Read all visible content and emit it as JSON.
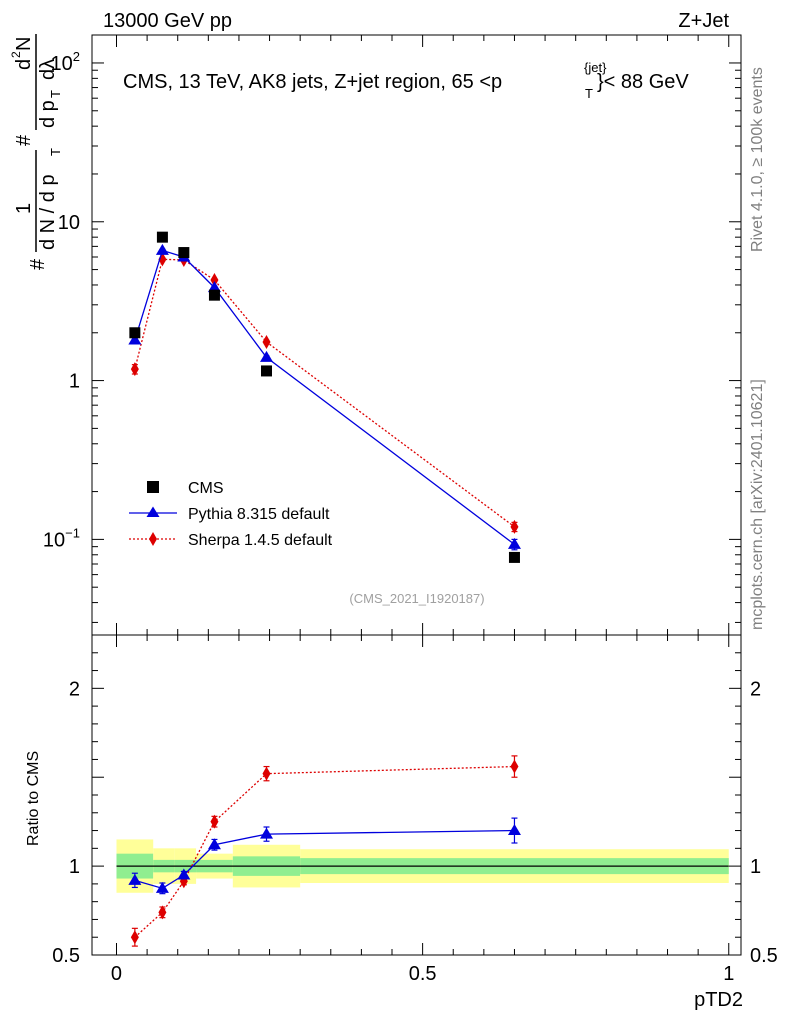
{
  "header": {
    "left": "13000 GeV pp",
    "right": "Z+Jet"
  },
  "side": {
    "rivet": "Rivet 4.1.0, ≥ 100k events",
    "mcplots": "mcplots.cern.ch [arXiv:2401.10621]"
  },
  "chart_data": [
    {
      "type": "line",
      "title": "CMS, 13 TeV, AK8 jets, Z+jet region, 65 < p_T^{jet} < 88 GeV",
      "title_parts": {
        "prefix": "CMS, 13 TeV, AK8 jets, Z+jet region, 65 <p",
        "sup": "{jet}",
        "sub": "T",
        "suffix": "}< 88 GeV"
      },
      "watermark": "(CMS_2021_I1920187)",
      "ylabel_parts": {
        "hash": "#",
        "one": "1",
        "den": "d N / d p",
        "sub_T": "T",
        "num": "d",
        "num_sup": "2",
        "num_N": "N",
        "dpt": "d p",
        "dl": "dλ"
      },
      "yscale": "log",
      "ylim": [
        0.025,
        150
      ],
      "y_ticks": [
        0.1,
        1,
        10,
        100
      ],
      "y_tick_labels": [
        {
          "base": "10",
          "exp": "−1"
        },
        {
          "base": "1",
          "exp": ""
        },
        {
          "base": "10",
          "exp": ""
        },
        {
          "base": "10",
          "exp": "2"
        }
      ],
      "xlim": [
        -0.04,
        1.02
      ],
      "legend": {
        "position": "bottom-left",
        "entries": [
          "CMS",
          "Pythia 8.315 default",
          "Sherpa 1.4.5 default"
        ]
      },
      "series": [
        {
          "name": "CMS",
          "color": "#000000",
          "marker": "square",
          "x": [
            0.03,
            0.075,
            0.11,
            0.16,
            0.245,
            0.65
          ],
          "y": [
            2.0,
            8.0,
            6.4,
            3.45,
            1.15,
            0.077
          ]
        },
        {
          "name": "Pythia 8.315 default",
          "color": "#0000dd",
          "marker": "triangle",
          "line": "solid",
          "x": [
            0.03,
            0.075,
            0.11,
            0.16,
            0.245,
            0.65
          ],
          "y": [
            1.8,
            6.6,
            6.0,
            3.85,
            1.4,
            0.093
          ],
          "yerr": [
            0.06,
            0.1,
            0.1,
            0.07,
            0.03,
            0.007
          ]
        },
        {
          "name": "Sherpa 1.4.5 default",
          "color": "#dd0000",
          "marker": "diamond",
          "line": "dotted",
          "x": [
            0.03,
            0.075,
            0.11,
            0.16,
            0.245,
            0.65
          ],
          "y": [
            1.18,
            5.8,
            5.75,
            4.3,
            1.75,
            0.12
          ],
          "yerr": [
            0.08,
            0.12,
            0.1,
            0.08,
            0.04,
            0.008
          ]
        }
      ]
    },
    {
      "type": "line",
      "ylabel": "Ratio to CMS",
      "xlabel": "pTD2",
      "xlim": [
        -0.04,
        1.02
      ],
      "ylim": [
        0.5,
        2.3
      ],
      "x_ticks": [
        0,
        0.5,
        1
      ],
      "x_tick_labels": [
        "0",
        "0.5",
        "1"
      ],
      "y_ticks": [
        0.5,
        1,
        2
      ],
      "y_tick_labels": [
        "0.5",
        "1",
        "2"
      ],
      "bands": {
        "bin_edges": [
          0,
          0.06,
          0.095,
          0.13,
          0.19,
          0.3,
          1.0
        ],
        "stat_lo": [
          0.93,
          0.965,
          0.965,
          0.965,
          0.945,
          0.955
        ],
        "stat_hi": [
          1.07,
          1.035,
          1.035,
          1.035,
          1.055,
          1.045
        ],
        "total_lo": [
          0.85,
          0.9,
          0.9,
          0.93,
          0.88,
          0.905
        ],
        "total_hi": [
          1.15,
          1.1,
          1.1,
          1.07,
          1.12,
          1.095
        ],
        "stat_color": "#90ee90",
        "total_color": "#ffff99"
      },
      "series": [
        {
          "name": "Pythia 8.315 default",
          "color": "#0000dd",
          "marker": "triangle",
          "line": "solid",
          "x": [
            0.03,
            0.075,
            0.11,
            0.16,
            0.245,
            0.65
          ],
          "y": [
            0.92,
            0.875,
            0.95,
            1.12,
            1.18,
            1.2
          ],
          "yerr": [
            0.04,
            0.03,
            0.02,
            0.03,
            0.04,
            0.07
          ]
        },
        {
          "name": "Sherpa 1.4.5 default",
          "color": "#dd0000",
          "marker": "diamond",
          "line": "dotted",
          "x": [
            0.03,
            0.075,
            0.11,
            0.16,
            0.245,
            0.65
          ],
          "y": [
            0.6,
            0.74,
            0.915,
            1.25,
            1.52,
            1.56
          ],
          "yerr": [
            0.05,
            0.03,
            0.02,
            0.03,
            0.04,
            0.06
          ]
        }
      ]
    }
  ]
}
